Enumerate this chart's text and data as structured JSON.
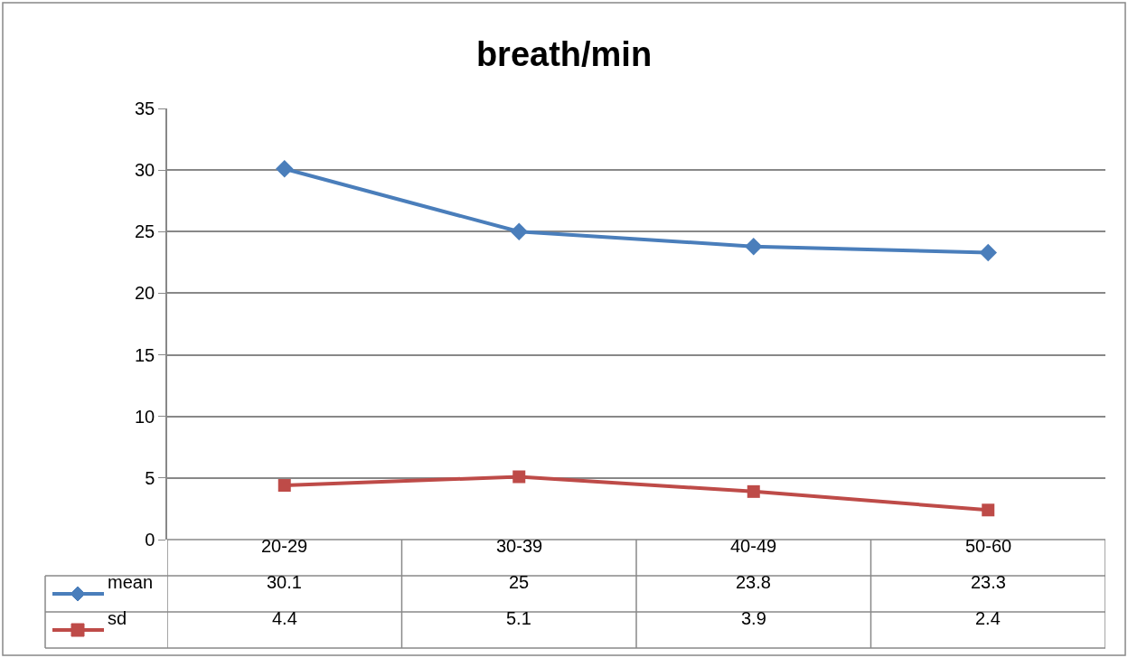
{
  "chart_data": {
    "type": "line",
    "title": "breath/min",
    "categories": [
      "20-29",
      "30-39",
      "40-49",
      "50-60"
    ],
    "series": [
      {
        "name": "mean",
        "color": "#4a7ebb",
        "marker": "diamond",
        "values": [
          30.1,
          25,
          23.8,
          23.3
        ]
      },
      {
        "name": "sd",
        "color": "#be4b48",
        "marker": "square",
        "values": [
          4.4,
          5.1,
          3.9,
          2.4
        ]
      }
    ],
    "ylim": [
      0,
      35
    ],
    "yticks": [
      0,
      5,
      10,
      15,
      20,
      25,
      30,
      35
    ],
    "grid": "y",
    "legend": "bottom",
    "data_labels": true
  }
}
